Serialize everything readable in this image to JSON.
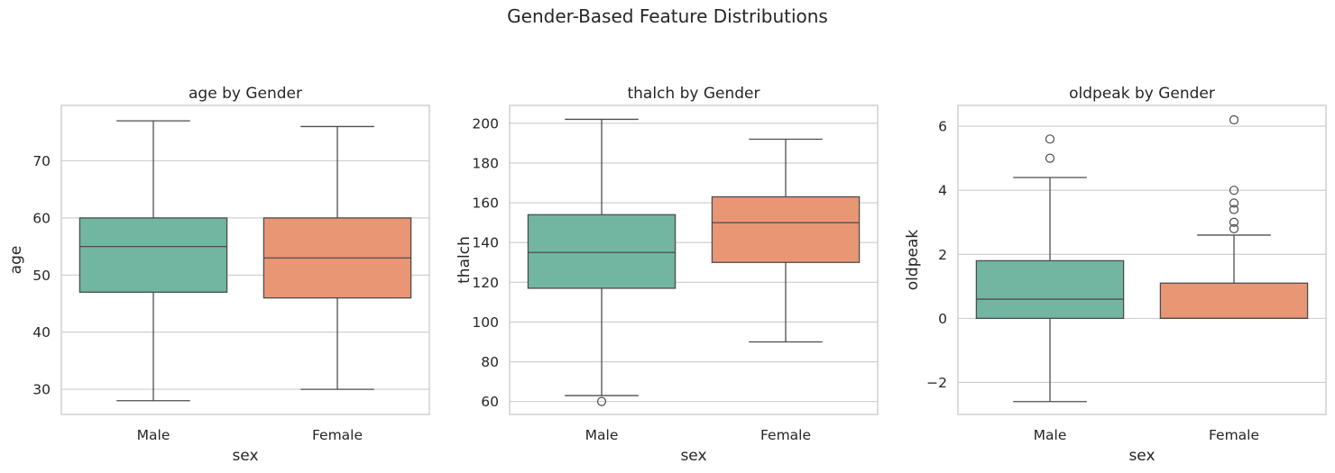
{
  "suptitle": "Gender-Based Feature Distributions",
  "colors": {
    "male": "#72b6a1",
    "female": "#e99675",
    "edge": "#4d4d4d",
    "grid": "#cccccc",
    "frame": "#cccccc"
  },
  "chart_data": [
    {
      "type": "box",
      "title": "age by Gender",
      "xlabel": "sex",
      "ylabel": "age",
      "categories": [
        "Male",
        "Female"
      ],
      "ylim": [
        25.6,
        79.7
      ],
      "yticks": [
        30,
        40,
        50,
        60,
        70
      ],
      "ytick_labels": [
        "30",
        "40",
        "50",
        "60",
        "70"
      ],
      "grid": true,
      "boxes": [
        {
          "name": "Male",
          "whisker_low": 28,
          "q1": 47,
          "median": 55,
          "q3": 60,
          "whisker_high": 77,
          "outliers": []
        },
        {
          "name": "Female",
          "whisker_low": 30,
          "q1": 46,
          "median": 53,
          "q3": 60,
          "whisker_high": 76,
          "outliers": []
        }
      ]
    },
    {
      "type": "box",
      "title": "thalch by Gender",
      "xlabel": "sex",
      "ylabel": "thalch",
      "categories": [
        "Male",
        "Female"
      ],
      "ylim": [
        53.5,
        209
      ],
      "yticks": [
        60,
        80,
        100,
        120,
        140,
        160,
        180,
        200
      ],
      "ytick_labels": [
        "60",
        "80",
        "100",
        "120",
        "140",
        "160",
        "180",
        "200"
      ],
      "grid": true,
      "boxes": [
        {
          "name": "Male",
          "whisker_low": 63,
          "q1": 117,
          "median": 135,
          "q3": 154,
          "whisker_high": 202,
          "outliers": [
            60
          ]
        },
        {
          "name": "Female",
          "whisker_low": 90,
          "q1": 130,
          "median": 150,
          "q3": 163,
          "whisker_high": 192,
          "outliers": []
        }
      ]
    },
    {
      "type": "box",
      "title": "oldpeak by Gender",
      "xlabel": "sex",
      "ylabel": "oldpeak",
      "categories": [
        "Male",
        "Female"
      ],
      "ylim": [
        -3.0,
        6.65
      ],
      "yticks": [
        -2,
        0,
        2,
        4,
        6
      ],
      "ytick_labels": [
        "−2",
        "0",
        "2",
        "4",
        "6"
      ],
      "grid": true,
      "boxes": [
        {
          "name": "Male",
          "whisker_low": -2.6,
          "q1": 0.0,
          "median": 0.6,
          "q3": 1.8,
          "whisker_high": 4.4,
          "outliers": [
            5.0,
            5.6
          ]
        },
        {
          "name": "Female",
          "whisker_low": 0.0,
          "q1": 0.0,
          "median": 0.0,
          "q3": 1.1,
          "whisker_high": 2.6,
          "outliers": [
            2.8,
            3.0,
            3.4,
            3.6,
            4.0,
            6.2
          ]
        }
      ]
    }
  ]
}
